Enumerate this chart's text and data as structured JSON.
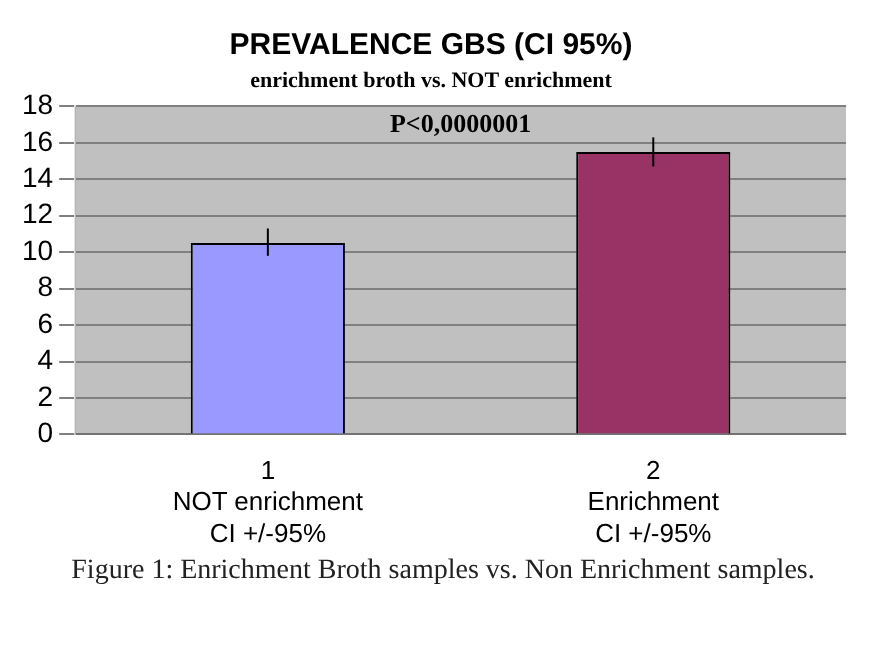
{
  "chart_data": {
    "type": "bar",
    "title": "PREVALENCE GBS (CI 95%)",
    "subtitle": "enrichment broth vs. NOT enrichment",
    "categories": [
      "1\nNOT enrichment\nCI +/-95%",
      "2\nEnrichment\nCI +/-95%"
    ],
    "values": [
      10.5,
      15.5
    ],
    "errors": [
      [
        9.8,
        11.3
      ],
      [
        14.7,
        16.3
      ]
    ],
    "colors": [
      "#9999ff",
      "#993366"
    ],
    "ylim": [
      0,
      18
    ],
    "yticks": [
      0,
      2,
      4,
      6,
      8,
      10,
      12,
      14,
      16,
      18
    ],
    "grid": "y",
    "legend": false,
    "annotations": [
      "P<0,0000001",
      "Figure 1: Enrichment Broth samples vs. Non Enrichment samples."
    ]
  }
}
